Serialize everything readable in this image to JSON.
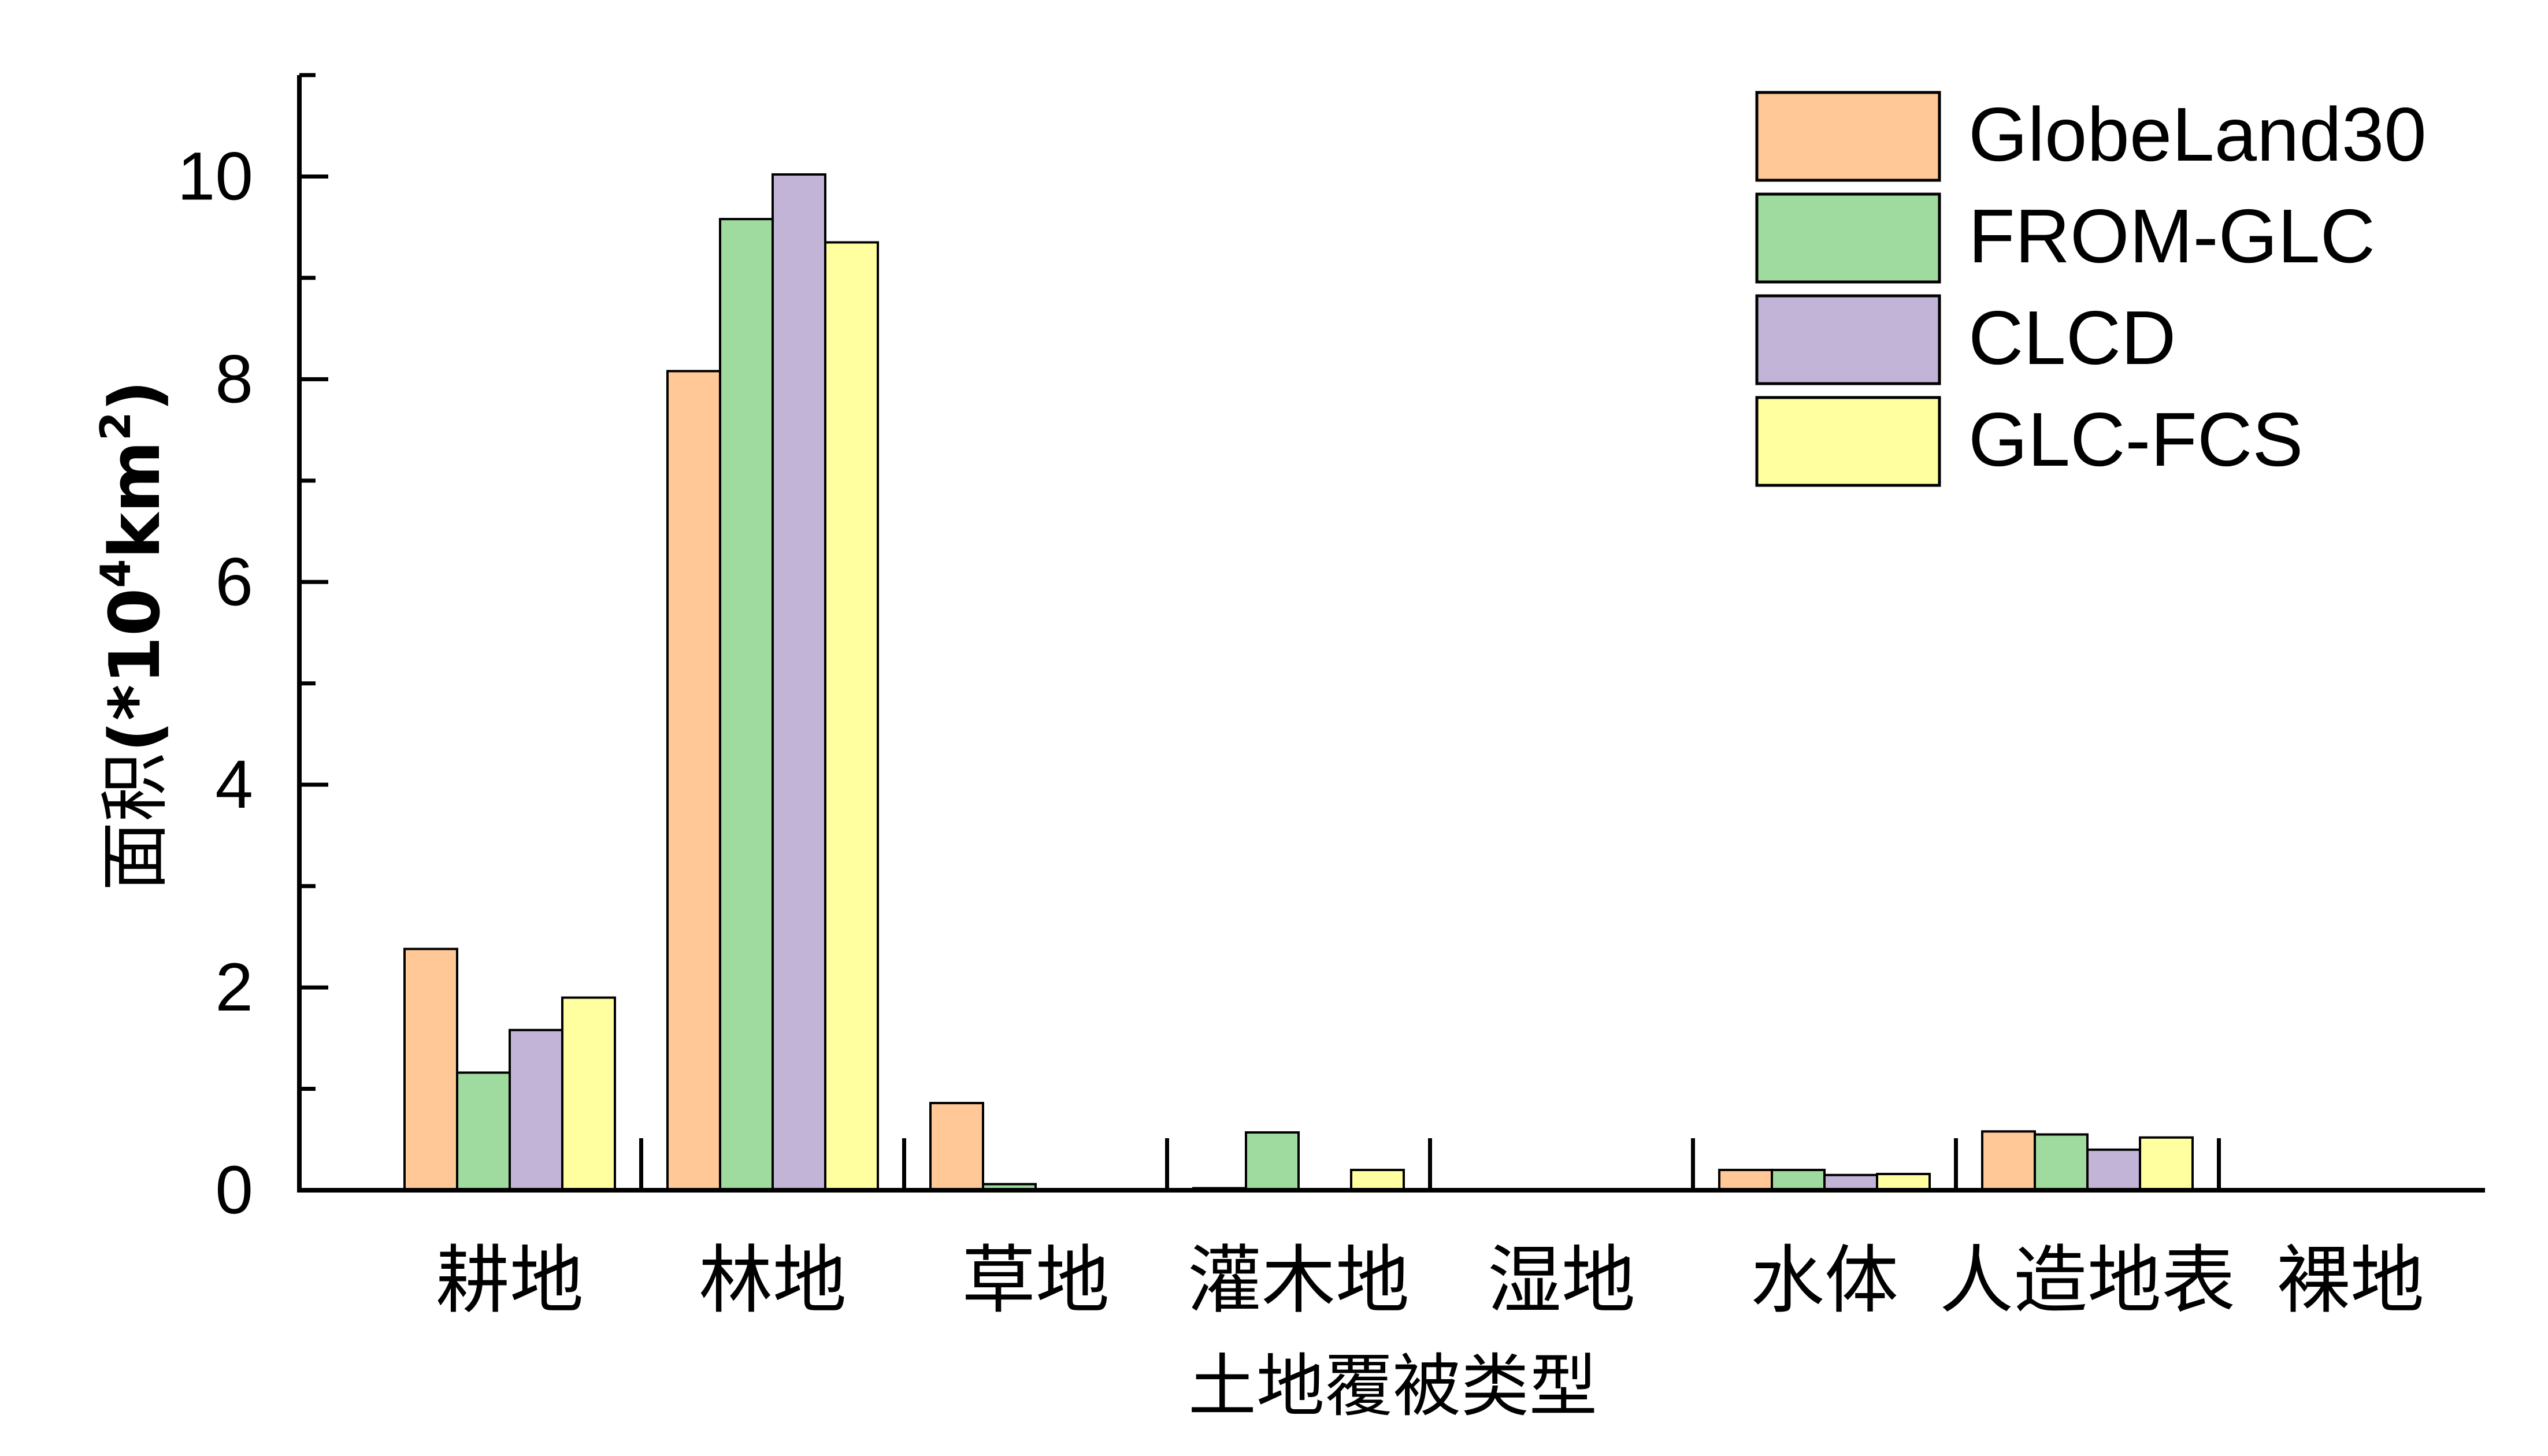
{
  "chart_data": {
    "type": "bar",
    "title": "",
    "xlabel": "土地覆被类型",
    "ylabel_main": "面积",
    "ylabel_unit_prefix": "(*10",
    "ylabel_unit_exp1": "4",
    "ylabel_unit_mid": "km",
    "ylabel_unit_exp2": "2",
    "ylabel_unit_suffix": ")",
    "ylim": [
      0,
      11
    ],
    "yticks": [
      0,
      2,
      4,
      6,
      8,
      10
    ],
    "categories": [
      "耕地",
      "林地",
      "草地",
      "灌木地",
      "湿地",
      "水体",
      "人造地表",
      "裸地"
    ],
    "series": [
      {
        "name": "GlobeLand30",
        "color": "#FFC896",
        "values": [
          2.38,
          8.08,
          0.86,
          0.02,
          0.01,
          0.2,
          0.58,
          0.0
        ]
      },
      {
        "name": "FROM-GLC",
        "color": "#9FDB9F",
        "values": [
          1.16,
          9.58,
          0.06,
          0.57,
          0.0,
          0.2,
          0.55,
          0.0
        ]
      },
      {
        "name": "CLCD",
        "color": "#C2B4D6",
        "values": [
          1.58,
          10.02,
          0.0,
          0.0,
          0.0,
          0.15,
          0.4,
          0.0
        ]
      },
      {
        "name": "GLC-FCS",
        "color": "#FFFFA0",
        "values": [
          1.9,
          9.35,
          0.0,
          0.2,
          0.0,
          0.16,
          0.52,
          0.0
        ]
      }
    ],
    "legend_position": "top-right",
    "grid": false
  }
}
